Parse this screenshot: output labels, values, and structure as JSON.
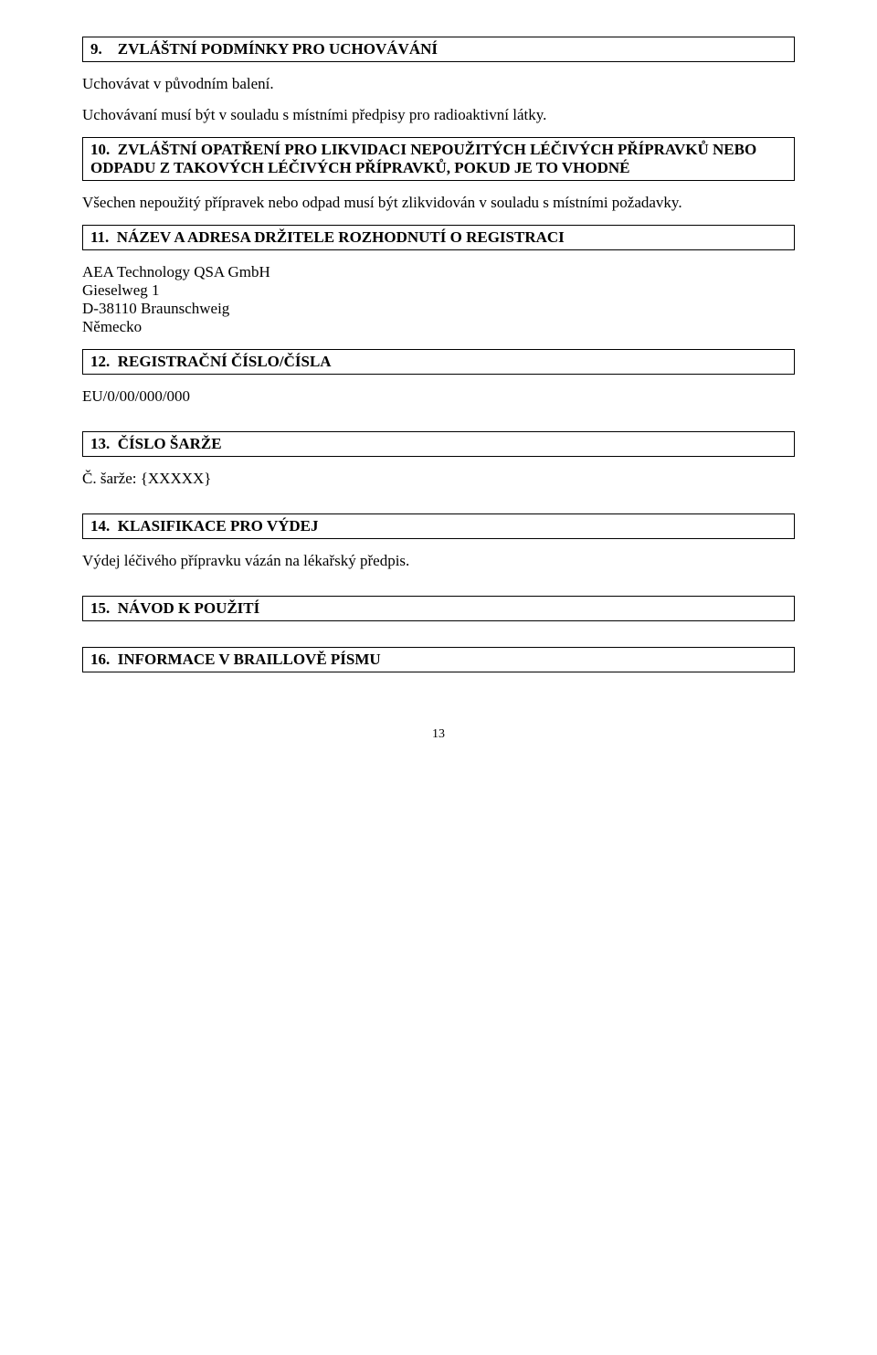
{
  "sections": {
    "s9": {
      "heading": "9.    ZVLÁŠTNÍ PODMÍNKY PRO UCHOVÁVÁNÍ",
      "p1": "Uchovávat v původním balení.",
      "p2": "Uchovávaní musí být v souladu s místními předpisy pro radioaktivní látky."
    },
    "s10": {
      "heading": "10.  ZVLÁŠTNÍ OPATŘENÍ PRO LIKVIDACI NEPOUŽITÝCH LÉČIVÝCH PŘÍPRAVKŮ NEBO ODPADU Z TAKOVÝCH LÉČIVÝCH PŘÍPRAVKŮ, POKUD JE TO VHODNÉ",
      "p1": "Všechen nepoužitý přípravek nebo odpad musí být zlikvidován v souladu s místními požadavky."
    },
    "s11": {
      "heading": "11.  NÁZEV A ADRESA DRŽITELE ROZHODNUTÍ O REGISTRACI",
      "addr": {
        "l1": "AEA Technology QSA GmbH",
        "l2": "Gieselweg 1",
        "l3": "D-38110 Braunschweig",
        "l4": "Německo"
      }
    },
    "s12": {
      "heading": "12.  REGISTRAČNÍ ČÍSLO/ČÍSLA",
      "p1": "EU/0/00/000/000"
    },
    "s13": {
      "heading": "13.  ČÍSLO ŠARŽE",
      "p1": "Č. šarže: {XXXXX}"
    },
    "s14": {
      "heading": "14.  KLASIFIKACE PRO VÝDEJ",
      "p1": "Výdej léčivého přípravku vázán na lékařský předpis."
    },
    "s15": {
      "heading": "15.  NÁVOD K POUŽITÍ"
    },
    "s16": {
      "heading": "16.  INFORMACE V BRAILLOVĚ PÍSMU"
    }
  },
  "page_number": "13"
}
